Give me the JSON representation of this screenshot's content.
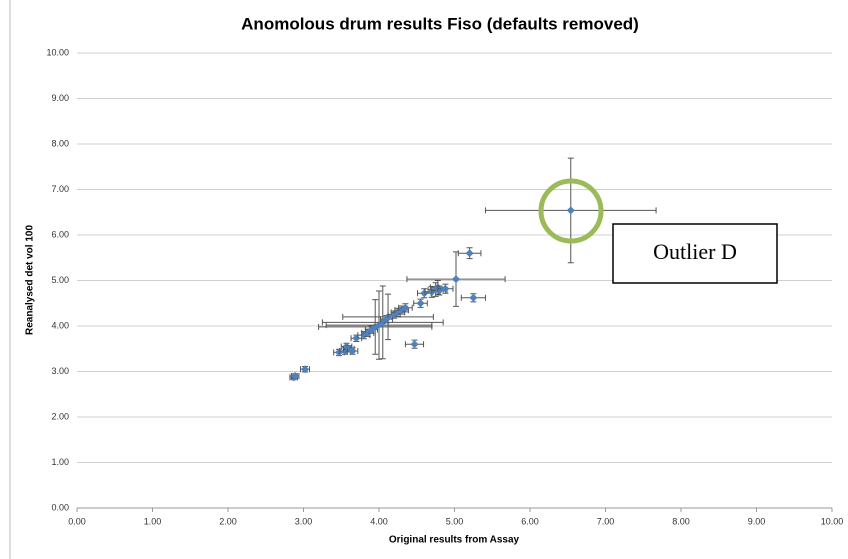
{
  "chart_data": {
    "type": "scatter",
    "title": "Anomolous drum results Fiso (defaults removed)",
    "xlabel": "Original results from Assay",
    "ylabel": "Reanalysed det vol 100",
    "annotation": "Outlier D",
    "color": "#4f81bd",
    "x": [
      2.87,
      2.89,
      3.02,
      3.47,
      3.55,
      3.57,
      3.6,
      3.65,
      3.7,
      3.8,
      3.85,
      3.9,
      3.95,
      4.0,
      4.05,
      4.1,
      4.12,
      4.2,
      4.25,
      4.3,
      4.35,
      4.47,
      4.55,
      4.6,
      4.7,
      4.75,
      4.78,
      4.8,
      4.88,
      5.02,
      5.2,
      5.25,
      6.54
    ],
    "y": [
      2.87,
      2.9,
      3.05,
      3.42,
      3.45,
      3.55,
      3.5,
      3.45,
      3.73,
      3.8,
      3.85,
      3.92,
      3.98,
      4.02,
      4.08,
      4.15,
      4.2,
      4.25,
      4.3,
      4.35,
      4.4,
      3.6,
      4.5,
      4.72,
      4.75,
      4.8,
      4.85,
      4.78,
      4.82,
      5.03,
      5.6,
      4.62,
      6.54
    ],
    "x_err": [
      0.05,
      0.05,
      0.06,
      0.07,
      0.07,
      0.07,
      0.07,
      0.07,
      0.07,
      0.08,
      0.08,
      0.08,
      0.75,
      0.7,
      0.8,
      0.08,
      0.6,
      0.08,
      0.09,
      0.09,
      0.09,
      0.12,
      0.09,
      0.09,
      0.09,
      0.1,
      0.1,
      0.1,
      0.1,
      0.65,
      0.15,
      0.16,
      1.13
    ],
    "y_err": [
      0.05,
      0.05,
      0.06,
      0.07,
      0.07,
      0.07,
      0.07,
      0.07,
      0.07,
      0.08,
      0.08,
      0.08,
      0.6,
      0.75,
      0.8,
      0.08,
      0.5,
      0.08,
      0.09,
      0.09,
      0.09,
      0.09,
      0.09,
      0.1,
      0.12,
      0.15,
      0.15,
      0.1,
      0.1,
      0.6,
      0.12,
      0.09,
      1.15
    ],
    "xlim": [
      0,
      10
    ],
    "ylim": [
      0,
      10
    ],
    "xticks": [
      {
        "value": 0,
        "label": "0.00"
      },
      {
        "value": 1,
        "label": "1.00"
      },
      {
        "value": 2,
        "label": "2.00"
      },
      {
        "value": 3,
        "label": "3.00"
      },
      {
        "value": 4,
        "label": "4.00"
      },
      {
        "value": 5,
        "label": "5.00"
      },
      {
        "value": 6,
        "label": "6.00"
      },
      {
        "value": 7,
        "label": "7.00"
      },
      {
        "value": 8,
        "label": "8.00"
      },
      {
        "value": 9,
        "label": "9.00"
      },
      {
        "value": 10,
        "label": "10.00"
      }
    ],
    "yticks": [
      {
        "value": 0,
        "label": "0.00"
      },
      {
        "value": 1,
        "label": "1.00"
      },
      {
        "value": 2,
        "label": "2.00"
      },
      {
        "value": 3,
        "label": "3.00"
      },
      {
        "value": 4,
        "label": "4.00"
      },
      {
        "value": 5,
        "label": "5.00"
      },
      {
        "value": 6,
        "label": "6.00"
      },
      {
        "value": 7,
        "label": "7.00"
      },
      {
        "value": 8,
        "label": "8.00"
      },
      {
        "value": 9,
        "label": "9.00"
      },
      {
        "value": 10,
        "label": "10.00"
      }
    ],
    "grid": true
  }
}
